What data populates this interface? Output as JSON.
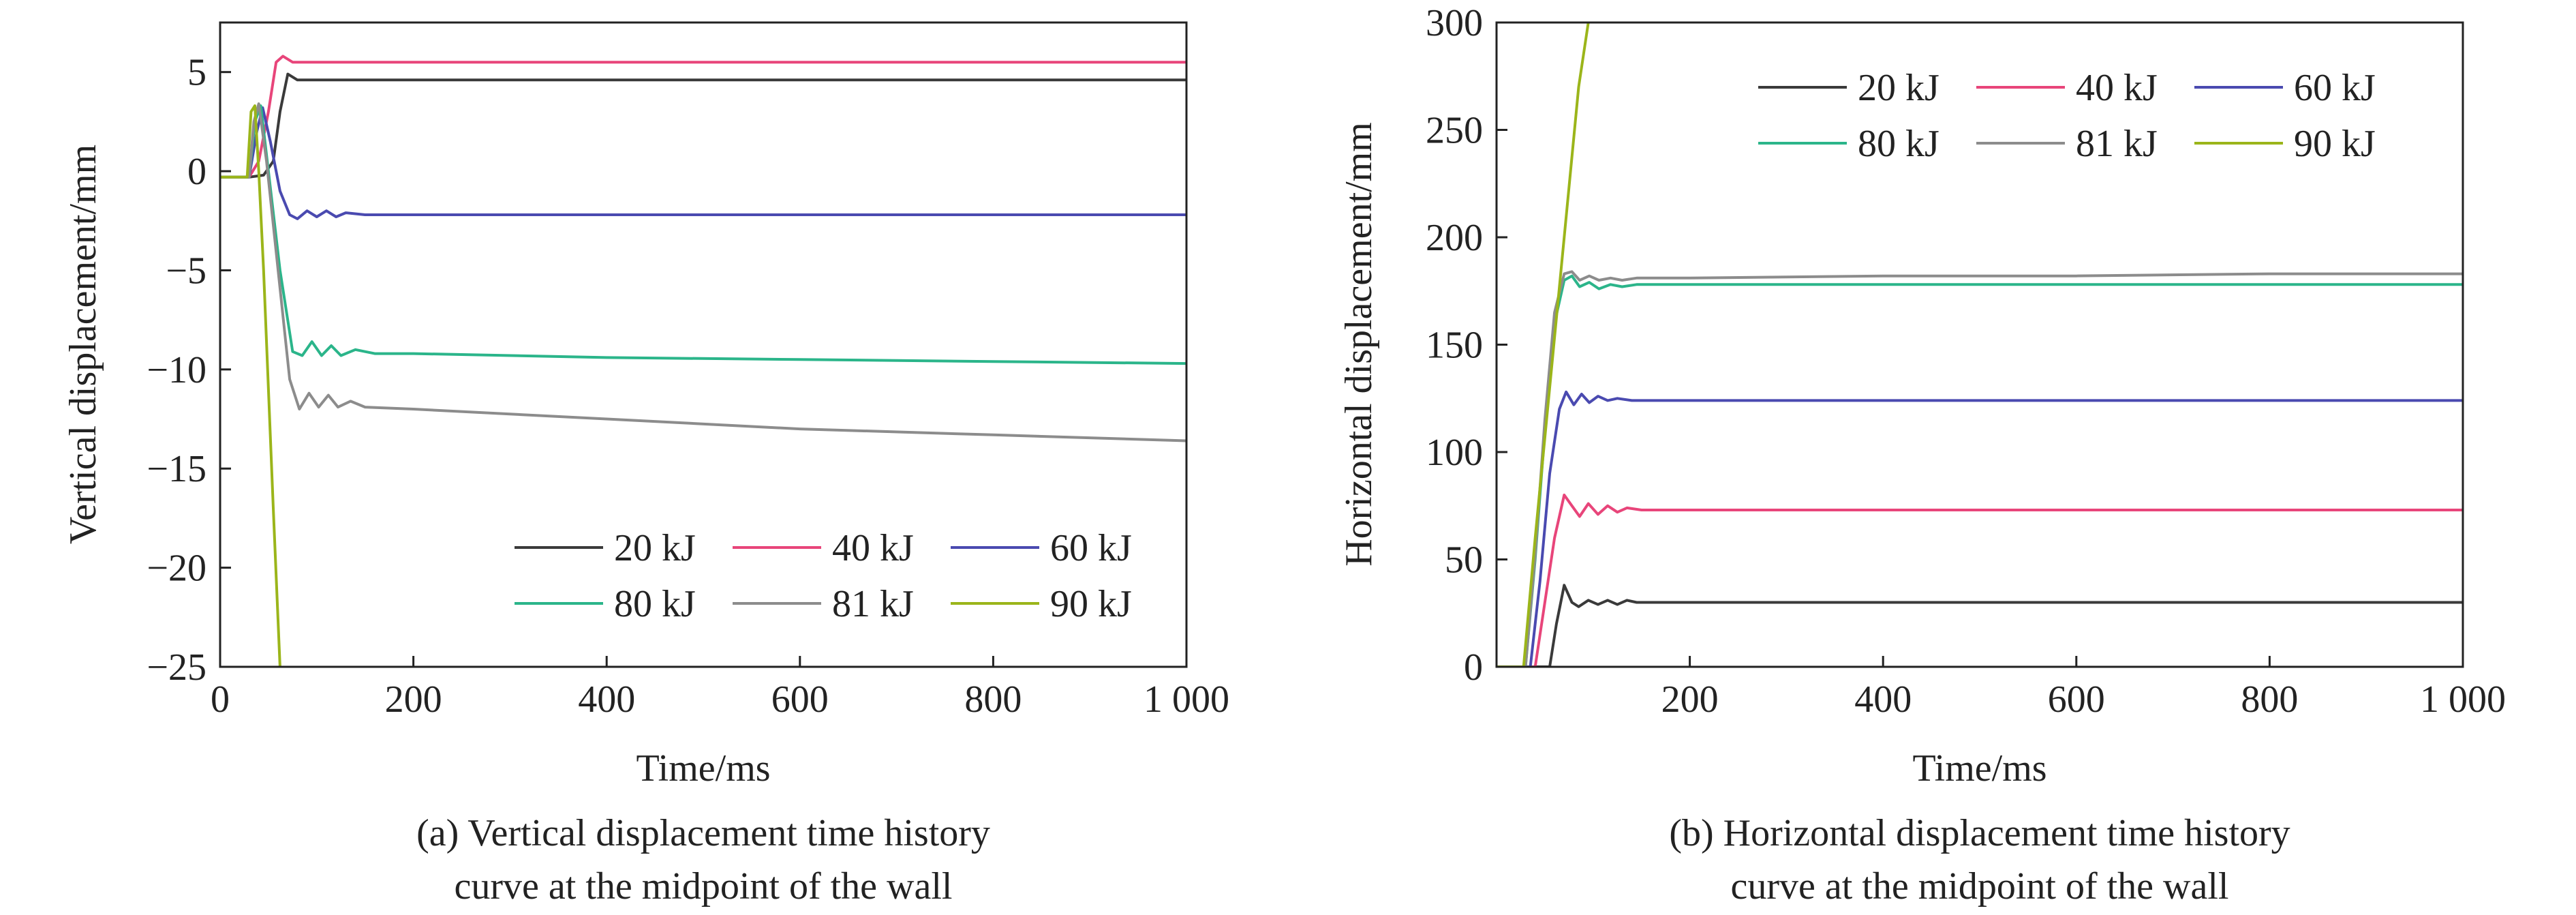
{
  "figure": {
    "background": "#ffffff",
    "text_color": "#222222",
    "axis_color": "#222222"
  },
  "chart_data": [
    {
      "type": "line",
      "xlabel": "Time/ms",
      "ylabel": "Vertical displacement/mm",
      "caption_line1": "(a) Vertical displacement time history",
      "caption_line2": "curve at the midpoint of the wall",
      "xlim": [
        0,
        1000
      ],
      "ylim": [
        -25,
        7.5
      ],
      "xticks": [
        0,
        200,
        400,
        600,
        800,
        1000
      ],
      "xtick_labels": [
        "0",
        "200",
        "400",
        "600",
        "800",
        "1 000"
      ],
      "yticks": [
        5,
        0,
        -5,
        -10,
        -15,
        -20,
        -25
      ],
      "ytick_labels": [
        "5",
        "0",
        "−5",
        "−10",
        "−15",
        "−20",
        "−25"
      ],
      "grid": false,
      "legend_position": "bottom-right",
      "series": [
        {
          "name": "20 kJ",
          "color": "#3a3a3a",
          "x": [
            0,
            30,
            45,
            55,
            62,
            70,
            80,
            100,
            150,
            200,
            400,
            600,
            800,
            1000
          ],
          "y": [
            -0.3,
            -0.3,
            -0.2,
            0.5,
            3.0,
            4.9,
            4.6,
            4.6,
            4.6,
            4.6,
            4.6,
            4.6,
            4.6,
            4.6
          ]
        },
        {
          "name": "40 kJ",
          "color": "#e8457a",
          "x": [
            0,
            30,
            40,
            50,
            58,
            65,
            75,
            100,
            200,
            400,
            600,
            800,
            1000
          ],
          "y": [
            -0.3,
            -0.3,
            0.5,
            3.0,
            5.5,
            5.8,
            5.5,
            5.5,
            5.5,
            5.5,
            5.5,
            5.5,
            5.5
          ]
        },
        {
          "name": "60 kJ",
          "color": "#4a4ab0",
          "x": [
            0,
            30,
            38,
            44,
            52,
            62,
            72,
            80,
            90,
            100,
            110,
            120,
            130,
            150,
            200,
            400,
            600,
            800,
            1000
          ],
          "y": [
            -0.3,
            -0.3,
            2.0,
            3.2,
            1.5,
            -1.0,
            -2.2,
            -2.4,
            -2.0,
            -2.3,
            -2.0,
            -2.3,
            -2.1,
            -2.2,
            -2.2,
            -2.2,
            -2.2,
            -2.2,
            -2.2
          ]
        },
        {
          "name": "80 kJ",
          "color": "#2bb58a",
          "x": [
            0,
            30,
            36,
            42,
            50,
            62,
            75,
            85,
            95,
            105,
            115,
            125,
            140,
            160,
            200,
            400,
            600,
            800,
            1000
          ],
          "y": [
            -0.3,
            -0.3,
            2.5,
            3.3,
            0.0,
            -5.0,
            -9.1,
            -9.3,
            -8.6,
            -9.3,
            -8.8,
            -9.3,
            -9.0,
            -9.2,
            -9.2,
            -9.4,
            -9.5,
            -9.6,
            -9.7
          ]
        },
        {
          "name": "81 kJ",
          "color": "#8c8c8c",
          "x": [
            0,
            30,
            35,
            40,
            48,
            60,
            72,
            82,
            92,
            102,
            112,
            122,
            135,
            150,
            200,
            400,
            600,
            800,
            1000
          ],
          "y": [
            -0.3,
            -0.3,
            2.5,
            3.4,
            0.5,
            -5.0,
            -10.5,
            -12.0,
            -11.2,
            -11.9,
            -11.3,
            -11.9,
            -11.6,
            -11.9,
            -12.0,
            -12.5,
            -13.0,
            -13.3,
            -13.6
          ]
        },
        {
          "name": "90 kJ",
          "color": "#9bb51a",
          "x": [
            0,
            28,
            32,
            36,
            40,
            45,
            55,
            62
          ],
          "y": [
            -0.3,
            -0.3,
            3.0,
            3.3,
            0.0,
            -5.0,
            -17.0,
            -25.0
          ]
        }
      ]
    },
    {
      "type": "line",
      "xlabel": "Time/ms",
      "ylabel": "Horizontal displacement/mm",
      "caption_line1": "(b) Horizontal displacement time history",
      "caption_line2": "curve at the midpoint of the wall",
      "xlim": [
        0,
        1000
      ],
      "ylim": [
        0,
        300
      ],
      "xticks": [
        200,
        400,
        600,
        800,
        1000
      ],
      "xtick_labels": [
        "200",
        "400",
        "600",
        "800",
        "1 000"
      ],
      "yticks": [
        0,
        50,
        100,
        150,
        200,
        250,
        300
      ],
      "ytick_labels": [
        "0",
        "50",
        "100",
        "150",
        "200",
        "250",
        "300"
      ],
      "grid": false,
      "legend_position": "top-right",
      "series": [
        {
          "name": "20 kJ",
          "color": "#3a3a3a",
          "x": [
            0,
            55,
            62,
            70,
            78,
            85,
            95,
            105,
            115,
            125,
            135,
            145,
            160,
            200,
            400,
            600,
            800,
            1000
          ],
          "y": [
            0,
            0,
            20,
            38,
            30,
            28,
            31,
            29,
            31,
            29,
            31,
            30,
            30,
            30,
            30,
            30,
            30,
            30
          ]
        },
        {
          "name": "40 kJ",
          "color": "#e8457a",
          "x": [
            0,
            40,
            50,
            60,
            70,
            78,
            86,
            95,
            105,
            115,
            125,
            135,
            150,
            200,
            400,
            600,
            800,
            1000
          ],
          "y": [
            0,
            0,
            30,
            60,
            80,
            75,
            70,
            76,
            71,
            75,
            72,
            74,
            73,
            73,
            73,
            73,
            73,
            73
          ]
        },
        {
          "name": "60 kJ",
          "color": "#4a4ab0",
          "x": [
            0,
            35,
            45,
            55,
            65,
            72,
            80,
            88,
            96,
            105,
            115,
            125,
            140,
            200,
            400,
            600,
            800,
            1000
          ],
          "y": [
            0,
            0,
            40,
            90,
            120,
            128,
            122,
            127,
            123,
            126,
            124,
            125,
            124,
            124,
            124,
            124,
            124,
            124
          ]
        },
        {
          "name": "80 kJ",
          "color": "#2bb58a",
          "x": [
            0,
            30,
            40,
            50,
            60,
            70,
            78,
            86,
            96,
            106,
            118,
            130,
            145,
            200,
            400,
            600,
            800,
            1000
          ],
          "y": [
            0,
            0,
            50,
            110,
            160,
            180,
            182,
            177,
            179,
            176,
            178,
            177,
            178,
            178,
            178,
            178,
            178,
            178
          ]
        },
        {
          "name": "81 kJ",
          "color": "#8c8c8c",
          "x": [
            0,
            30,
            40,
            50,
            60,
            70,
            78,
            86,
            96,
            106,
            118,
            130,
            145,
            200,
            400,
            600,
            800,
            1000
          ],
          "y": [
            0,
            0,
            52,
            115,
            165,
            183,
            184,
            180,
            182,
            180,
            181,
            180,
            181,
            181,
            182,
            182,
            183,
            183
          ]
        },
        {
          "name": "90 kJ",
          "color": "#9bb51a",
          "x": [
            0,
            28,
            40,
            55,
            70,
            85,
            95
          ],
          "y": [
            0,
            0,
            60,
            130,
            200,
            270,
            300
          ]
        }
      ]
    }
  ]
}
